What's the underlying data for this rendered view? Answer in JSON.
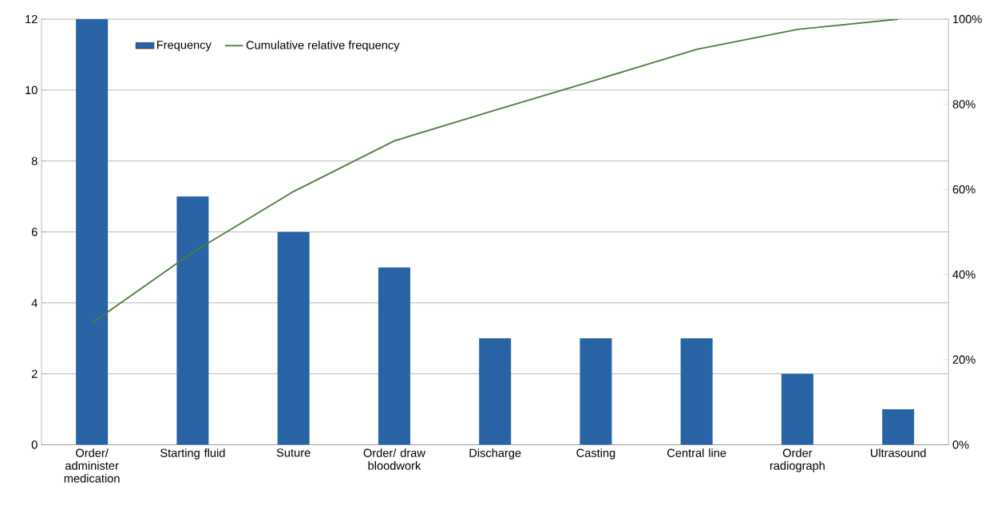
{
  "chart_data": {
    "type": "bar",
    "categories": [
      "Order/ administer medication",
      "Starting fluid",
      "Suture",
      "Order/ draw bloodwork",
      "Discharge",
      "Casting",
      "Central line",
      "Order radiograph",
      "Ultrasound"
    ],
    "series": [
      {
        "name": "Frequency",
        "color": "#2763a5",
        "values": [
          12,
          7,
          6,
          5,
          3,
          3,
          3,
          2,
          1
        ]
      },
      {
        "name": "Cumulative relative frequency",
        "type": "line",
        "axis": "y2",
        "color": "#4e7d3c",
        "values": [
          28.6,
          45.2,
          59.5,
          71.4,
          78.6,
          85.7,
          92.9,
          97.6,
          100
        ]
      }
    ],
    "ylim": [
      0,
      12
    ],
    "yticks": [
      0,
      2,
      4,
      6,
      8,
      10,
      12
    ],
    "y2lim": [
      0,
      100
    ],
    "y2ticks": [
      {
        "value": 0,
        "label": "0%"
      },
      {
        "value": 20,
        "label": "20%"
      },
      {
        "value": 40,
        "label": "40%"
      },
      {
        "value": 60,
        "label": "60%"
      },
      {
        "value": 80,
        "label": "80%"
      },
      {
        "value": 100,
        "label": "100%"
      }
    ],
    "grid": "y",
    "legend": "top left",
    "marker": "none",
    "line_style": "solid"
  }
}
